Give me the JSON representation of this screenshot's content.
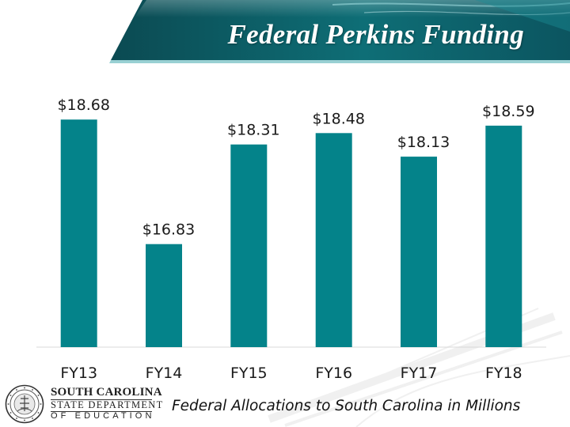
{
  "slide": {
    "title": "Federal Perkins Funding",
    "footnote": "Federal Allocations to South Carolina in Millions"
  },
  "logo": {
    "line1": "SOUTH CAROLINA",
    "line2": "STATE DEPARTMENT",
    "line3": "OF EDUCATION"
  },
  "colors": {
    "bar": "#04838A",
    "header_dark": "#0B4A52",
    "header_mid": "#0E7E86",
    "axis": "#D9D9D9"
  },
  "chart_data": {
    "type": "bar",
    "categories": [
      "FY13",
      "FY14",
      "FY15",
      "FY16",
      "FY17",
      "FY18"
    ],
    "values": [
      18.68,
      16.83,
      18.31,
      18.48,
      18.13,
      18.59
    ],
    "data_labels": [
      "$18.68",
      "$16.83",
      "$18.31",
      "$18.48",
      "$18.13",
      "$18.59"
    ],
    "title": "",
    "xlabel": "",
    "ylabel": "",
    "ylim": [
      15.3,
      19.0
    ],
    "grid": false,
    "legend": "none"
  }
}
